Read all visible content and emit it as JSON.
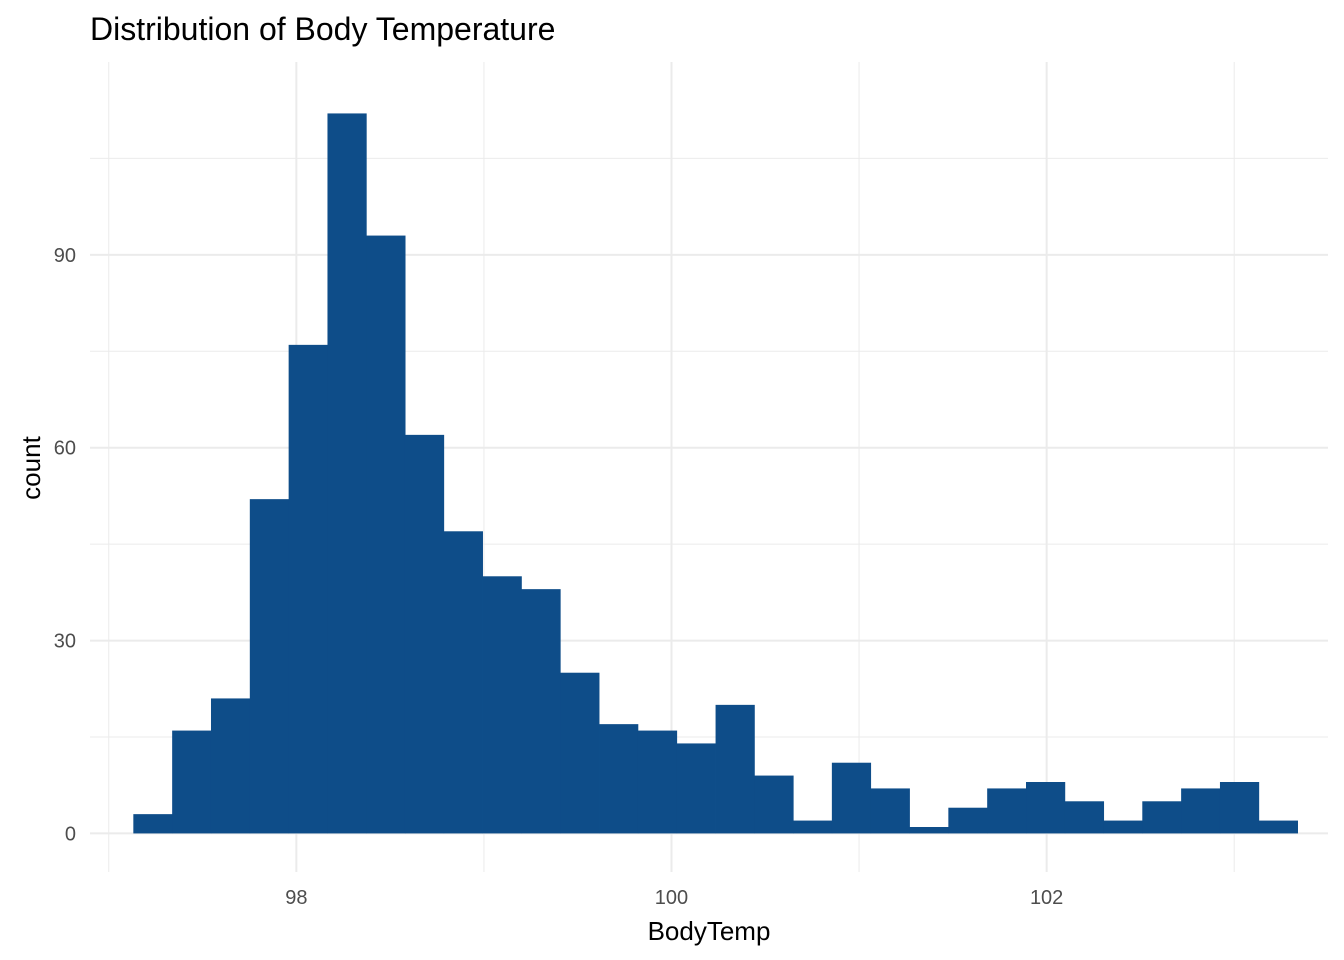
{
  "chart_data": {
    "type": "bar",
    "title": "Distribution of Body Temperature",
    "xlabel": "BodyTemp",
    "ylabel": "count",
    "bar_color": "#0E4D89",
    "grid": true,
    "grid_color": "#EBEBEB",
    "background": "#FFFFFF",
    "xlim": [
      96.9,
      103.5
    ],
    "ylim": [
      -6,
      120
    ],
    "x_ticks": [
      98,
      100,
      102
    ],
    "x_tick_labels": [
      "98",
      "100",
      "102"
    ],
    "x_minor_ticks": [
      97,
      99,
      101,
      103
    ],
    "y_ticks": [
      0,
      30,
      60,
      90
    ],
    "y_tick_labels": [
      "0",
      "30",
      "60",
      "90"
    ],
    "y_minor_ticks": [
      15,
      45,
      75,
      105
    ],
    "bin_width": 0.2069,
    "bin_starts": [
      97.131,
      97.338,
      97.545,
      97.752,
      97.959,
      98.166,
      98.373,
      98.579,
      98.786,
      98.993,
      99.2,
      99.407,
      99.614,
      99.821,
      100.028,
      100.235,
      100.442,
      100.648,
      100.855,
      101.062,
      101.269,
      101.476,
      101.683,
      101.89,
      102.097,
      102.304,
      102.51,
      102.717,
      102.924,
      103.131
    ],
    "values": [
      3,
      16,
      21,
      52,
      76,
      112,
      93,
      62,
      47,
      40,
      38,
      25,
      17,
      16,
      14,
      20,
      9,
      2,
      11,
      7,
      1,
      4,
      7,
      8,
      5,
      2,
      5,
      7,
      8,
      2
    ]
  }
}
